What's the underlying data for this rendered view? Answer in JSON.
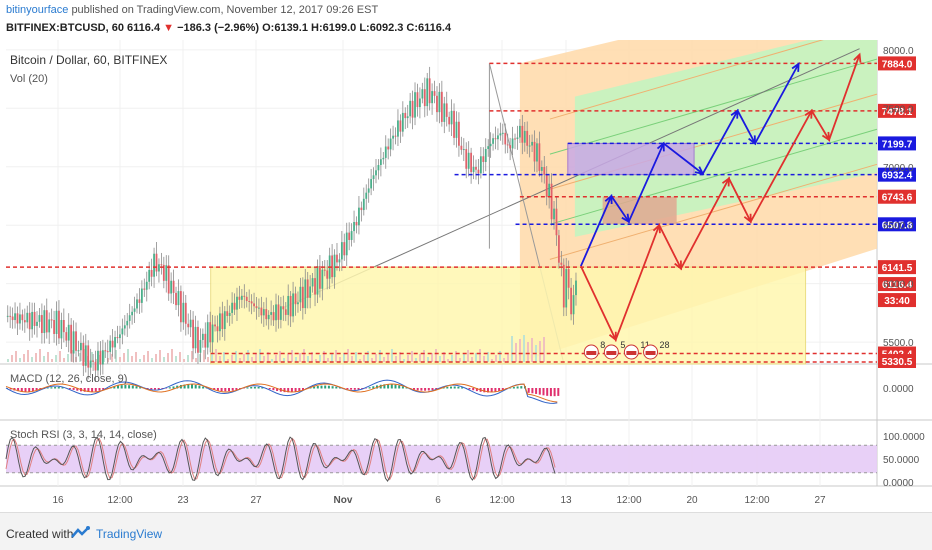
{
  "header": {
    "author": "bitinyourface",
    "published_text": "published on TradingView.com, November 12, 2017 09:26 EST",
    "symbol": "BITFINEX:BTCUSD, 60",
    "last": "6116.4",
    "change": "−186.3 (−2.96%)",
    "ohlc": "O:6139.1 H:6199.0 L:6092.3 C:6116.4"
  },
  "footer": {
    "created_with": "Created with",
    "brand": "TradingView"
  },
  "chart_data": {
    "type": "line",
    "title": "Bitcoin / Dollar, 60, BITFINEX",
    "volume_label": "Vol (20)",
    "x_ticks": [
      "16",
      "12:00",
      "23",
      "27",
      "Nov",
      "6",
      "12:00",
      "13",
      "12:00",
      "20",
      "12:00",
      "27"
    ],
    "y_ticks": [
      "8000.0",
      "7500.0",
      "7000.0",
      "6500.0",
      "6000.0",
      "5500.0"
    ],
    "ylim": [
      5330,
      8050
    ],
    "price_path": [
      [
        0,
        5720
      ],
      [
        0.06,
        5650
      ],
      [
        0.1,
        5300
      ],
      [
        0.13,
        5560
      ],
      [
        0.155,
        5900
      ],
      [
        0.17,
        6180
      ],
      [
        0.18,
        6120
      ],
      [
        0.2,
        5800
      ],
      [
        0.22,
        5480
      ],
      [
        0.25,
        5700
      ],
      [
        0.27,
        5900
      ],
      [
        0.3,
        5720
      ],
      [
        0.32,
        5780
      ],
      [
        0.34,
        5900
      ],
      [
        0.36,
        6050
      ],
      [
        0.38,
        6200
      ],
      [
        0.4,
        6500
      ],
      [
        0.42,
        6900
      ],
      [
        0.44,
        7200
      ],
      [
        0.455,
        7400
      ],
      [
        0.47,
        7550
      ],
      [
        0.485,
        7650
      ],
      [
        0.5,
        7500
      ],
      [
        0.515,
        7350
      ],
      [
        0.525,
        7100
      ],
      [
        0.54,
        6950
      ],
      [
        0.555,
        7200
      ],
      [
        0.57,
        7300
      ],
      [
        0.575,
        7150
      ],
      [
        0.59,
        7300
      ],
      [
        0.61,
        7100
      ],
      [
        0.62,
        6850
      ],
      [
        0.63,
        6550
      ],
      [
        0.64,
        5900
      ],
      [
        0.645,
        6100
      ],
      [
        0.65,
        5650
      ],
      [
        0.655,
        6200
      ]
    ],
    "levels": [
      {
        "value": 7884.0,
        "label": "7884.0",
        "color": "#e0302e"
      },
      {
        "value": 7478.1,
        "label": "7478.1",
        "color": "#e0302e"
      },
      {
        "value": 7199.7,
        "label": "7199.7",
        "color": "#1a1adf"
      },
      {
        "value": 6932.4,
        "label": "6932.4",
        "color": "#1a1adf"
      },
      {
        "value": 6743.6,
        "label": "6743.6",
        "color": "#e0302e"
      },
      {
        "value": 6507.8,
        "label": "6507.8",
        "color": "#1a1adf"
      },
      {
        "value": 6141.5,
        "label": "6141.5",
        "color": "#e0302e"
      },
      {
        "value": 5402.4,
        "label": "5402.4",
        "color": "#e0302e"
      },
      {
        "value": 5330.5,
        "label": "5330.5",
        "color": "#e0302e"
      }
    ],
    "last_price": {
      "value": 6116.4,
      "label": "6116.4",
      "color": "#e0302e"
    },
    "countdown": {
      "label": "33:40",
      "color": "#e0302e"
    },
    "blue_path": [
      [
        0.66,
        6150
      ],
      [
        0.695,
        6750
      ],
      [
        0.715,
        6530
      ],
      [
        0.755,
        7200
      ],
      [
        0.8,
        6940
      ],
      [
        0.84,
        7480
      ],
      [
        0.86,
        7200
      ],
      [
        0.91,
        7880
      ]
    ],
    "red_path": [
      [
        0.66,
        6150
      ],
      [
        0.7,
        5520
      ],
      [
        0.75,
        6500
      ],
      [
        0.775,
        6130
      ],
      [
        0.83,
        6900
      ],
      [
        0.855,
        6530
      ],
      [
        0.925,
        7480
      ],
      [
        0.945,
        7230
      ],
      [
        0.98,
        7960
      ]
    ],
    "event_labels": [
      "8",
      "5",
      "11",
      "28"
    ],
    "macd": {
      "label": "MACD (12, 26, close, 9)",
      "y_ticks": [
        "0.0000"
      ]
    },
    "stoch_rsi": {
      "label": "Stoch RSI (3, 3, 14, 14, close)",
      "y_ticks": [
        "100.0000",
        "50.0000",
        "0.0000"
      ]
    },
    "colors": {
      "up_candle": "#4aaf8a",
      "down_candle": "#e0616a",
      "blue_arrow": "#1a1adf",
      "red_arrow": "#e0302e",
      "yellow_box": "#fff7b0",
      "purple_box": "#c9a9e6",
      "stoch_band": "#e6cbf6",
      "orange_channel": "#ffd9a8",
      "green_channel": "#c7f2c0"
    }
  }
}
